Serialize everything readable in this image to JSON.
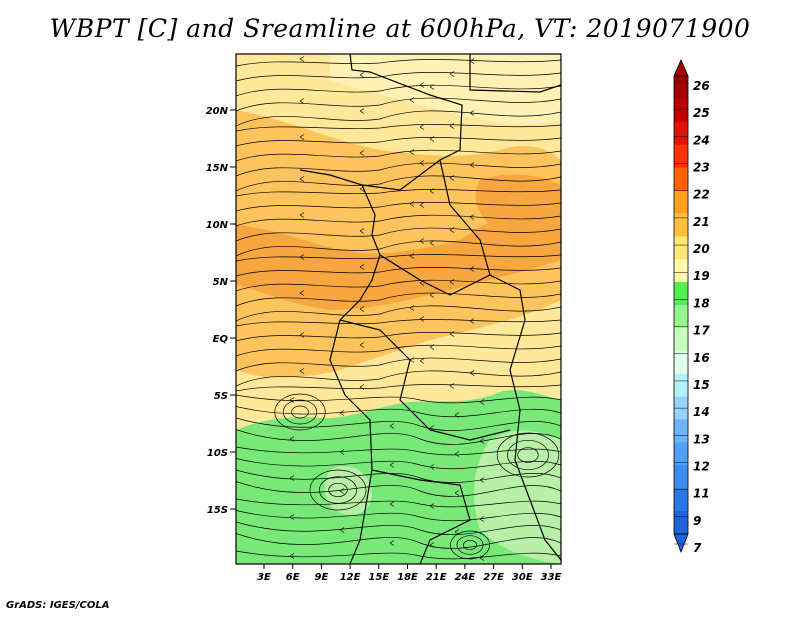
{
  "title": "WBPT [C] and Sreamline at 600hPa, VT: 2019071900",
  "credit": "GrADS: IGES/COLA",
  "lat_labels": [
    "20N",
    "15N",
    "10N",
    "5N",
    "EQ",
    "5S",
    "10S",
    "15S"
  ],
  "lon_labels": [
    "3E",
    "6E",
    "9E",
    "12E",
    "15E",
    "18E",
    "21E",
    "24E",
    "27E",
    "30E",
    "33E"
  ],
  "colorbar": {
    "labels": [
      "7",
      "9",
      "11",
      "12",
      "13",
      "14",
      "15",
      "16",
      "17",
      "18",
      "19",
      "20",
      "21",
      "22",
      "23",
      "24",
      "25",
      "26"
    ],
    "colors": [
      "#1e64dc",
      "#2a78e6",
      "#3c8cf0",
      "#50a0f5",
      "#6eb4fa",
      "#96d2fa",
      "#b4f0fa",
      "#e1fff0",
      "#c8ffbe",
      "#96f58c",
      "#50f050",
      "#fffaaa",
      "#ffe878",
      "#ffc03c",
      "#ffa01e",
      "#ff6000",
      "#ff3200",
      "#e11400",
      "#c00000",
      "#a50000"
    ]
  },
  "colors": {
    "green_light": "#b8f0a8",
    "green": "#78e878",
    "yellow": "#ffe89a",
    "yellow_light": "#fff2b4",
    "orange_light": "#fdc45e",
    "orange": "#f7a640"
  }
}
